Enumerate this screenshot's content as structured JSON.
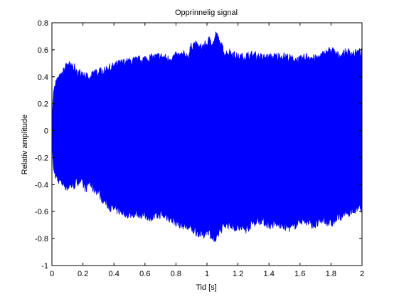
{
  "chart_data": {
    "type": "area",
    "title": "Opprinnelig signal",
    "xlabel": "Tid [s]",
    "ylabel": "Relativ amplitude",
    "xlim": [
      0,
      2
    ],
    "ylim": [
      -1,
      0.8
    ],
    "xticks": [
      "0",
      "0.2",
      "0.4",
      "0.6",
      "0.8",
      "1",
      "1.2",
      "1.4",
      "1.6",
      "1.8",
      "2"
    ],
    "yticks": [
      "0.8",
      "0.6",
      "0.4",
      "0.2",
      "0",
      "-0.2",
      "-0.4",
      "-0.6",
      "-0.8",
      "-1"
    ],
    "grid": false,
    "series_color": "#0000ff",
    "envelope": {
      "x": [
        0.0,
        0.01,
        0.02,
        0.04,
        0.06,
        0.08,
        0.1,
        0.12,
        0.14,
        0.16,
        0.18,
        0.2,
        0.22,
        0.24,
        0.26,
        0.28,
        0.3,
        0.32,
        0.34,
        0.36,
        0.38,
        0.4,
        0.45,
        0.5,
        0.55,
        0.6,
        0.65,
        0.7,
        0.75,
        0.8,
        0.85,
        0.88,
        0.9,
        0.92,
        0.95,
        0.98,
        1.0,
        1.02,
        1.04,
        1.06,
        1.08,
        1.1,
        1.12,
        1.15,
        1.2,
        1.25,
        1.3,
        1.35,
        1.4,
        1.45,
        1.5,
        1.55,
        1.6,
        1.65,
        1.7,
        1.75,
        1.8,
        1.85,
        1.9,
        1.95,
        2.0
      ],
      "upper": [
        0.05,
        0.28,
        0.35,
        0.38,
        0.4,
        0.45,
        0.5,
        0.47,
        0.48,
        0.42,
        0.43,
        0.43,
        0.41,
        0.36,
        0.41,
        0.44,
        0.42,
        0.45,
        0.44,
        0.47,
        0.46,
        0.48,
        0.5,
        0.51,
        0.52,
        0.53,
        0.54,
        0.55,
        0.53,
        0.55,
        0.56,
        0.55,
        0.63,
        0.64,
        0.61,
        0.63,
        0.64,
        0.68,
        0.64,
        0.72,
        0.65,
        0.61,
        0.57,
        0.58,
        0.54,
        0.55,
        0.56,
        0.54,
        0.54,
        0.55,
        0.55,
        0.53,
        0.52,
        0.55,
        0.53,
        0.56,
        0.6,
        0.55,
        0.58,
        0.57,
        0.58
      ],
      "lower": [
        -0.05,
        -0.28,
        -0.33,
        -0.36,
        -0.38,
        -0.4,
        -0.42,
        -0.4,
        -0.41,
        -0.38,
        -0.37,
        -0.4,
        -0.43,
        -0.38,
        -0.42,
        -0.44,
        -0.45,
        -0.5,
        -0.52,
        -0.55,
        -0.57,
        -0.58,
        -0.6,
        -0.62,
        -0.61,
        -0.63,
        -0.64,
        -0.62,
        -0.64,
        -0.68,
        -0.7,
        -0.72,
        -0.73,
        -0.74,
        -0.76,
        -0.77,
        -0.73,
        -0.76,
        -0.8,
        -0.82,
        -0.74,
        -0.72,
        -0.69,
        -0.7,
        -0.72,
        -0.73,
        -0.68,
        -0.66,
        -0.7,
        -0.69,
        -0.71,
        -0.72,
        -0.66,
        -0.68,
        -0.7,
        -0.66,
        -0.69,
        -0.64,
        -0.61,
        -0.59,
        -0.57
      ]
    }
  }
}
